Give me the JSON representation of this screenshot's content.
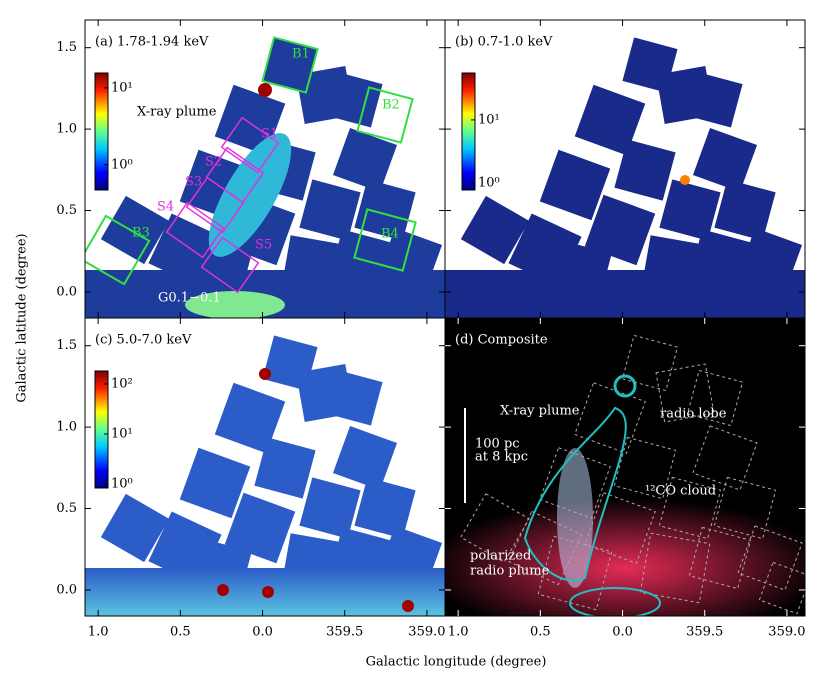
{
  "figure": {
    "xlabel": "Galactic longitude (degree)",
    "ylabel": "Galactic latitude (degree)",
    "xlim": [
      1.08,
      -1.11
    ],
    "ylim": [
      -0.16,
      1.67
    ],
    "xticks": [
      {
        "value": 1.0,
        "label": "1.0"
      },
      0.5,
      {
        "value": 0,
        "label": "0.0"
      },
      {
        "value": -0.5,
        "label": "359.5"
      },
      {
        "value": -1.0,
        "label": "359.0"
      }
    ],
    "yticks": [
      {
        "value": 0,
        "label": "0.0"
      },
      0.5,
      {
        "value": 1.0,
        "label": "1.0"
      },
      1.5
    ]
  },
  "chart_data": [
    {
      "type": "image",
      "title": "(a) 1.78-1.94 keV",
      "colorbar": {
        "log": true,
        "clim": [
          0.47,
          15.6
        ],
        "ticks": [
          {
            "value": 1,
            "label": "10⁰"
          },
          {
            "value": 10,
            "label": "10¹"
          }
        ]
      },
      "annotations": [
        "X-ray plume",
        "G0.1−0.1",
        "B1",
        "B2",
        "B3",
        "B4",
        "S1",
        "S2",
        "S3",
        "S4",
        "S5"
      ]
    },
    {
      "type": "image",
      "title": "(b) 0.7-1.0 keV",
      "colorbar": {
        "log": true,
        "clim": [
          0.77,
          55.6
        ],
        "ticks": [
          {
            "value": 1,
            "label": "10⁰"
          },
          {
            "value": 10,
            "label": "10¹"
          }
        ]
      }
    },
    {
      "type": "image",
      "title": "(c) 5.0-7.0 keV",
      "colorbar": {
        "log": true,
        "clim": [
          0.83,
          182
        ],
        "ticks": [
          {
            "value": 1,
            "label": "10⁰"
          },
          {
            "value": 10,
            "label": "10¹"
          },
          {
            "value": 100,
            "label": "10²"
          }
        ]
      }
    },
    {
      "type": "image",
      "title": "(d) Composite",
      "annotations": [
        "X-ray plume",
        "radio lobe",
        "¹²CO cloud",
        [
          "polarized",
          "radio plume"
        ],
        [
          "100 pc",
          "at 8 kpc"
        ]
      ]
    }
  ]
}
